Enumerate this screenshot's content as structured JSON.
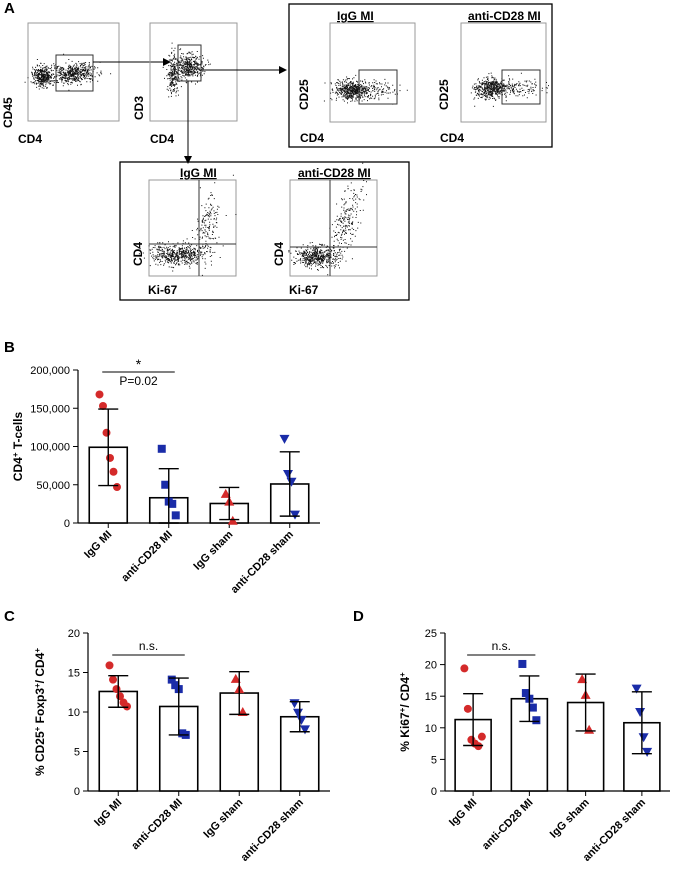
{
  "panel_labels": {
    "a": "A",
    "b": "B",
    "c": "C",
    "d": "D"
  },
  "flow": {
    "plot1": {
      "x_label": "CD4",
      "y_label": "CD45"
    },
    "plot2": {
      "x_label": "CD4",
      "y_label": "CD3"
    },
    "cd25_group": {
      "left": {
        "title": "IgG MI",
        "x_label": "CD4",
        "y_label": "CD25"
      },
      "right": {
        "title": "anti-CD28 MI",
        "x_label": "CD4",
        "y_label": "CD25"
      }
    },
    "ki67_group": {
      "left": {
        "title": "IgG MI",
        "x_label": "Ki-67",
        "y_label": "CD4"
      },
      "right": {
        "title": "anti-CD28 MI",
        "x_label": "Ki-67",
        "y_label": "CD4"
      }
    }
  },
  "chart_data": [
    {
      "id": "B",
      "type": "bar",
      "categories": [
        "IgG MI",
        "anti-CD28 MI",
        "IgG sham",
        "anti-CD28 sham"
      ],
      "ylabel": "CD4+ T-cells",
      "ylim": [
        0,
        200000
      ],
      "yticks": [
        0,
        50000,
        100000,
        150000,
        200000
      ],
      "ytick_labels": [
        "0",
        "50,000",
        "100,000",
        "150,000",
        "200,000"
      ],
      "means": [
        99000,
        33000,
        25500,
        51000
      ],
      "sd": [
        50000,
        38000,
        21000,
        42000
      ],
      "points": [
        [
          168000,
          153000,
          118000,
          85000,
          67000,
          47000
        ],
        [
          97000,
          50000,
          28000,
          25000,
          10000
        ],
        [
          38000,
          28000,
          3000
        ],
        [
          110000,
          64000,
          54000,
          11000
        ]
      ],
      "markers": [
        "circle",
        "square",
        "triangle-up",
        "triangle-down"
      ],
      "colors": [
        "#d42a2a",
        "#1a2ca8",
        "#d42a2a",
        "#1a2ca8"
      ],
      "annotation": {
        "text_star": "*",
        "text_p": "P=0.02",
        "from": 0,
        "to": 1
      }
    },
    {
      "id": "C",
      "type": "bar",
      "categories": [
        "IgG MI",
        "anti-CD28 MI",
        "IgG sham",
        "anti-CD28 sham"
      ],
      "ylabel": "% CD25+ Foxp3+/ CD4+",
      "ylim": [
        0,
        20
      ],
      "yticks": [
        0,
        5,
        10,
        15,
        20
      ],
      "ytick_labels": [
        "0",
        "5",
        "10",
        "15",
        "20"
      ],
      "means": [
        12.6,
        10.7,
        12.4,
        9.4
      ],
      "sd": [
        2.0,
        3.6,
        2.7,
        1.9
      ],
      "points": [
        [
          15.9,
          14.1,
          12.9,
          12.0,
          11.2,
          10.7
        ],
        [
          14.1,
          13.4,
          12.9,
          7.3,
          7.1
        ],
        [
          14.2,
          12.9,
          10.0
        ],
        [
          11.1,
          9.9,
          9.0,
          7.8
        ]
      ],
      "markers": [
        "circle",
        "square",
        "triangle-up",
        "triangle-down"
      ],
      "colors": [
        "#d42a2a",
        "#1a2ca8",
        "#d42a2a",
        "#1a2ca8"
      ],
      "annotation": {
        "text": "n.s.",
        "from": 0,
        "to": 1
      }
    },
    {
      "id": "D",
      "type": "bar",
      "categories": [
        "IgG MI",
        "anti-CD28 MI",
        "IgG sham",
        "anti-CD28 sham"
      ],
      "ylabel": "% Ki67+/ CD4+",
      "ylim": [
        0,
        25
      ],
      "yticks": [
        0,
        5,
        10,
        15,
        20,
        25
      ],
      "ytick_labels": [
        "0",
        "5",
        "10",
        "15",
        "20",
        "25"
      ],
      "means": [
        11.3,
        14.6,
        14.0,
        10.8
      ],
      "sd": [
        4.1,
        3.6,
        4.5,
        4.9
      ],
      "points": [
        [
          19.4,
          13.0,
          8.1,
          7.5,
          7.1,
          8.6
        ],
        [
          20.1,
          15.5,
          14.6,
          13.2,
          11.2
        ],
        [
          17.7,
          15.2,
          9.7
        ],
        [
          16.2,
          12.5,
          8.5,
          6.2
        ]
      ],
      "markers": [
        "circle",
        "square",
        "triangle-up",
        "triangle-down"
      ],
      "colors": [
        "#d42a2a",
        "#1a2ca8",
        "#d42a2a",
        "#1a2ca8"
      ],
      "annotation": {
        "text": "n.s.",
        "from": 0,
        "to": 1
      }
    }
  ]
}
